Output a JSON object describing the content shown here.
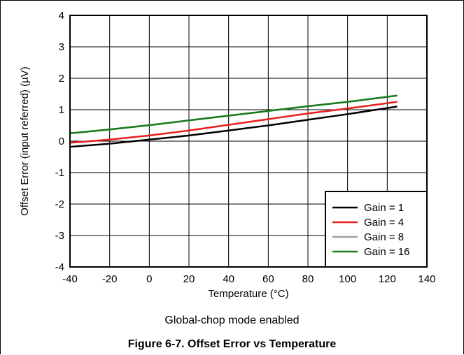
{
  "chart_data": {
    "type": "line",
    "xlabel": "Temperature (°C)",
    "ylabel": "Offset Error (input referred) (µV)",
    "xlim": [
      -40,
      140
    ],
    "ylim": [
      -4,
      4
    ],
    "xticks": [
      -40,
      -20,
      0,
      20,
      40,
      60,
      80,
      100,
      120,
      140
    ],
    "yticks": [
      -4,
      -3,
      -2,
      -1,
      0,
      1,
      2,
      3,
      4
    ],
    "grid": true,
    "legend_position": "bottom-right",
    "series": [
      {
        "name": "Gain = 1",
        "color": "#000000",
        "x": [
          -40,
          -20,
          0,
          20,
          40,
          60,
          80,
          100,
          125
        ],
        "y": [
          -0.18,
          -0.08,
          0.05,
          0.18,
          0.34,
          0.5,
          0.68,
          0.86,
          1.1
        ]
      },
      {
        "name": "Gain = 4",
        "color": "#e8201c",
        "x": [
          -40,
          -20,
          0,
          20,
          40,
          60,
          80,
          100,
          125
        ],
        "y": [
          -0.05,
          0.05,
          0.18,
          0.34,
          0.52,
          0.7,
          0.88,
          1.04,
          1.25
        ]
      },
      {
        "name": "Gain = 8",
        "color": "#a0a0a0",
        "x": [
          -40,
          -20,
          0,
          20,
          40,
          60,
          80,
          100,
          125
        ],
        "y": [
          0.25,
          0.37,
          0.51,
          0.66,
          0.81,
          0.96,
          1.11,
          1.25,
          1.45
        ]
      },
      {
        "name": "Gain = 16",
        "color": "#1a7a1a",
        "x": [
          -40,
          -20,
          0,
          20,
          40,
          60,
          80,
          100,
          125
        ],
        "y": [
          0.25,
          0.37,
          0.51,
          0.66,
          0.81,
          0.96,
          1.11,
          1.25,
          1.45
        ]
      }
    ]
  },
  "subtitle": "Global-chop mode enabled",
  "caption": "Figure 6-7. Offset Error vs Temperature"
}
